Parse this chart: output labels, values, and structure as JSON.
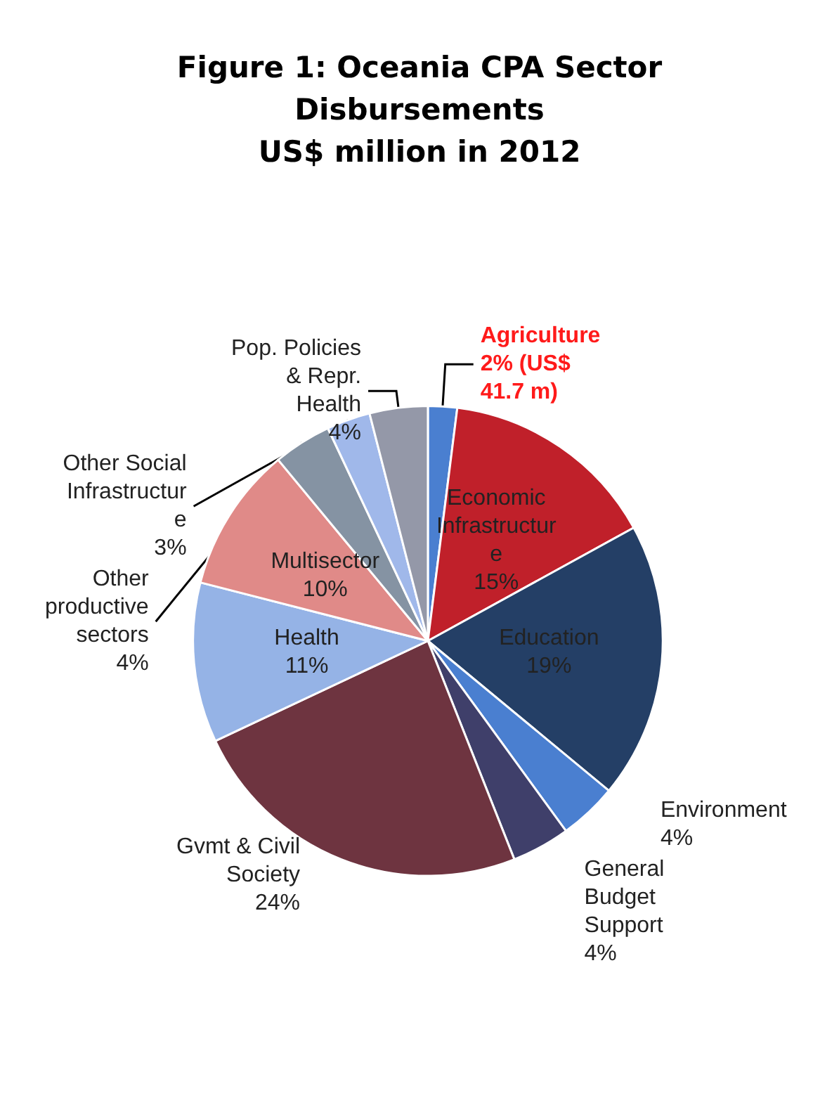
{
  "chart_data": {
    "type": "pie",
    "title": "Figure 1: Oceania CPA Sector\nDisbursements\nUS$ million in 2012",
    "categories": [
      "Agriculture",
      "Economic\nInfrastructur\ne",
      "Education",
      "Environment",
      "General\nBudget\nSupport",
      "Gvmt & Civil\nSociety",
      "Health",
      "Multisector",
      "Other\nproductive\nsectors",
      "Other Social\nInfrastructur\ne",
      "Pop. Policies\n& Repr.\nHealth"
    ],
    "values": [
      2,
      15,
      19,
      4,
      4,
      24,
      11,
      10,
      4,
      3,
      4
    ],
    "value_labels": [
      "2% (US$\n41.7 m)",
      "15%",
      "19%",
      "4%",
      "4%",
      "24%",
      "11%",
      "10%",
      "4%",
      "3%",
      "4%"
    ],
    "colors": [
      "#4a7fd0",
      "#c0202a",
      "#243f66",
      "#4a7fd0",
      "#3f3f6a",
      "#6e3440",
      "#95b3e6",
      "#e08a88",
      "#8593a3",
      "#a0b8ea",
      "#9498a8"
    ],
    "legend": false
  }
}
